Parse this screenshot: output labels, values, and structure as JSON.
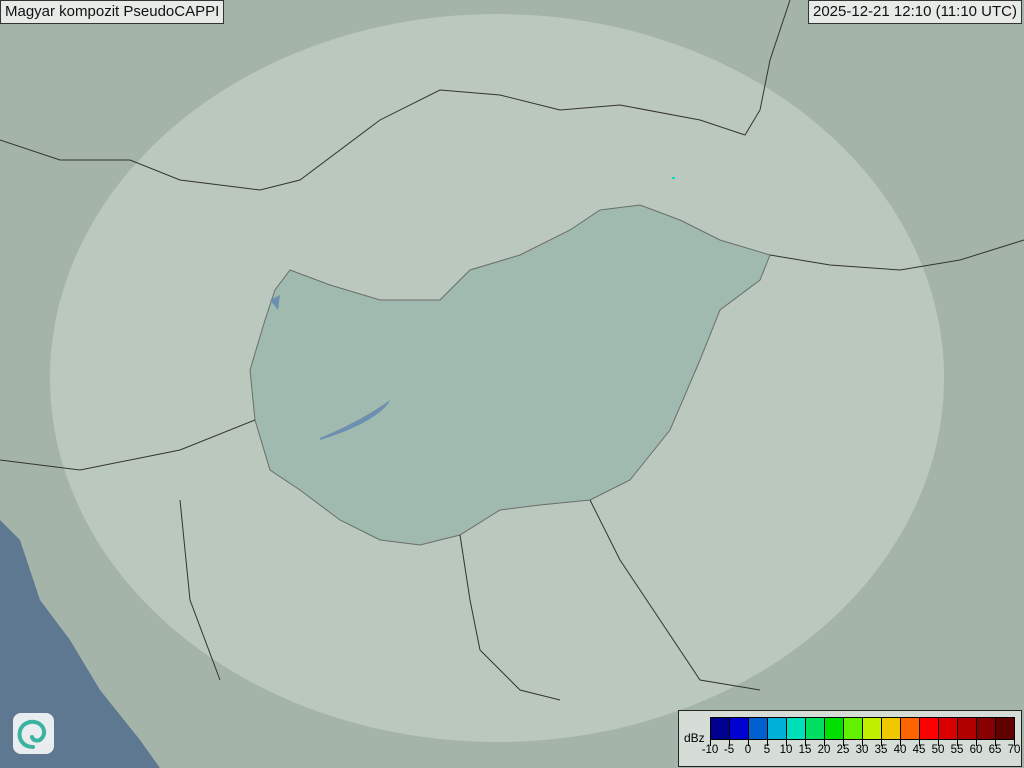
{
  "title": "Magyar kompozit  PseudoCAPPI",
  "timestamp": "2025-12-21 12:10 (11:10 UTC)",
  "legend": {
    "unit": "dBz",
    "ticks": [
      "-10",
      "-5",
      "0",
      "5",
      "10",
      "15",
      "20",
      "25",
      "30",
      "35",
      "40",
      "45",
      "50",
      "55",
      "60",
      "65",
      "70"
    ],
    "colors": [
      "#000090",
      "#0000d0",
      "#0060d0",
      "#00b0d8",
      "#00e0b8",
      "#00e060",
      "#00e000",
      "#60f000",
      "#c0f000",
      "#f0c800",
      "#ff6400",
      "#ff0000",
      "#d80000",
      "#b00000",
      "#880000",
      "#600000"
    ]
  },
  "logo": "met-service-swirl-logo"
}
